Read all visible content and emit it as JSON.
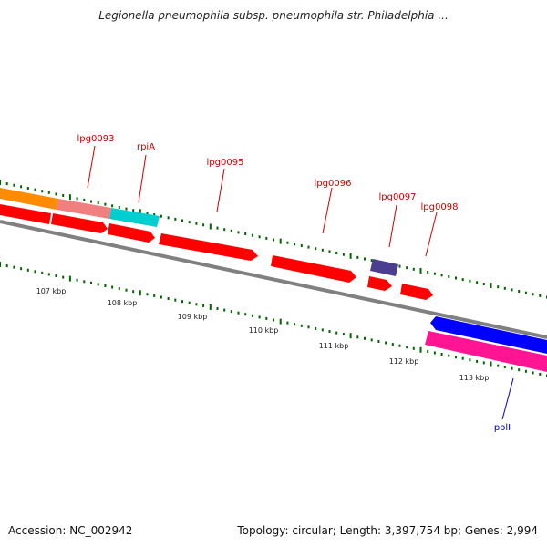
{
  "title": "Legionella pneumophila subsp. pneumophila str. Philadelphia ...",
  "footer": {
    "accession": "Accession: NC_002942",
    "stats": "Topology: circular; Length: 3,397,754 bp; Genes: 2,994"
  },
  "colors": {
    "gene_forward": "#ff0000",
    "gene_reverse_blue": "#0000ff",
    "gene_reverse_pink": "#ff1493",
    "purple_feature": "#4b3d8f",
    "orange_feature": "#ff8c00",
    "salmon_feature": "#f08080",
    "cyan_feature": "#00ced1",
    "backbone": "#808080",
    "tick": "#006400",
    "label_forward": "#cc0000",
    "label_reverse": "#0000cc"
  },
  "axis": {
    "ticks": [
      "107 kbp",
      "108 kbp",
      "109 kbp",
      "110 kbp",
      "111 kbp",
      "112 kbp",
      "113 kbp"
    ]
  },
  "genes": [
    {
      "label": "lpg0093",
      "strand": "forward"
    },
    {
      "label": "rpiA",
      "strand": "forward"
    },
    {
      "label": "lpg0095",
      "strand": "forward"
    },
    {
      "label": "lpg0096",
      "strand": "forward"
    },
    {
      "label": "lpg0097",
      "strand": "forward"
    },
    {
      "label": "lpg0098",
      "strand": "forward"
    },
    {
      "label": "polI",
      "strand": "reverse"
    }
  ]
}
